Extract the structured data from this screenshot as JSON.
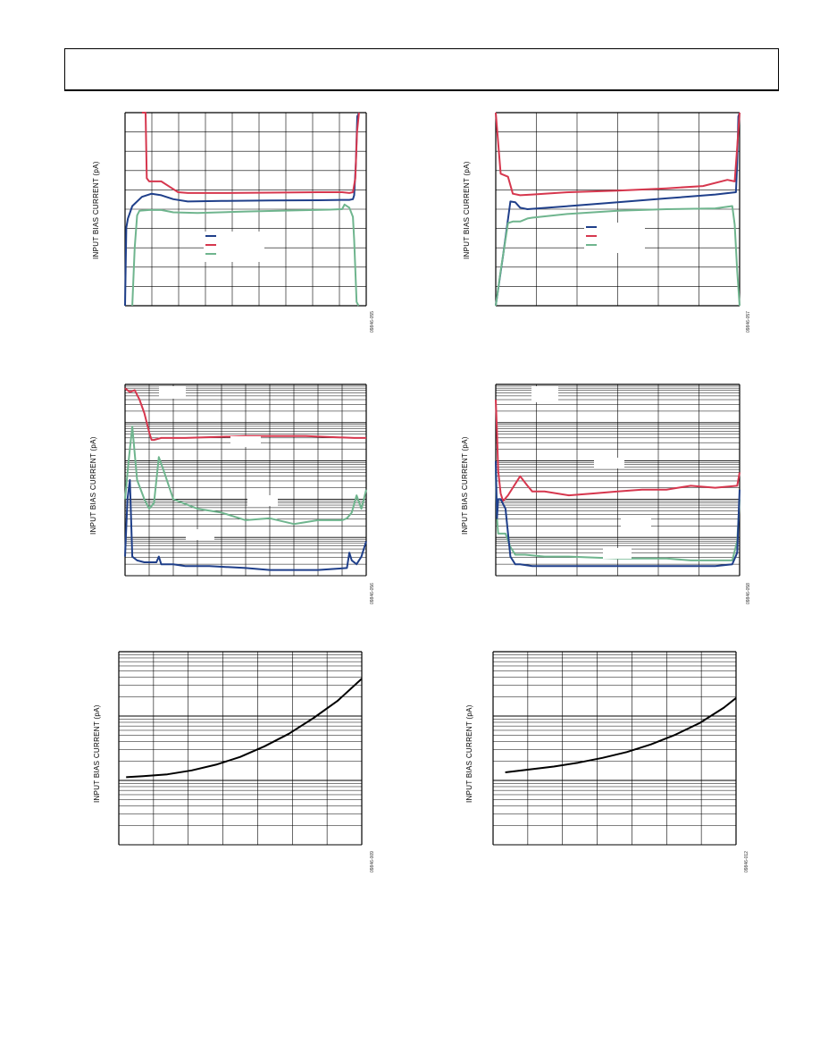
{
  "charts": [
    {
      "ylabel": "INPUT BIAS CURRENT (pA)",
      "fignum": "09846-055"
    },
    {
      "ylabel": "INPUT BIAS CURRENT (pA)",
      "fignum": "09846-057"
    },
    {
      "ylabel": "INPUT BIAS CURRENT (pA)",
      "fignum": "09846-056"
    },
    {
      "ylabel": "INPUT BIAS CURRENT (pA)",
      "fignum": "09846-058"
    },
    {
      "ylabel": "INPUT BIAS CURRENT (pA)",
      "fignum": "09846-009"
    },
    {
      "ylabel": "INPUT BIAS CURRENT (pA)",
      "fignum": "09846-012"
    }
  ],
  "colors": {
    "blue": "#1f3f8a",
    "red": "#d6374e",
    "green": "#6fb58e",
    "grid": "#000000",
    "curve": "#000000"
  },
  "chart_data": [
    {
      "type": "line",
      "grid": "linear",
      "series": [
        {
          "color": "blue",
          "x": [
            0,
            0.005,
            0.012,
            0.03,
            0.07,
            0.11,
            0.15,
            0.2,
            0.26,
            0.4,
            0.6,
            0.8,
            0.9,
            0.93,
            0.945,
            0.95,
            0.957,
            0.963,
            0.97
          ],
          "y": [
            -7,
            -1.2,
            -0.6,
            0.2,
            0.8,
            1.0,
            0.9,
            0.65,
            0.5,
            0.53,
            0.56,
            0.58,
            0.6,
            0.6,
            0.65,
            0.9,
            3,
            6,
            8
          ]
        },
        {
          "color": "red",
          "x": [
            0.07,
            0.085,
            0.09,
            0.1,
            0.15,
            0.19,
            0.22,
            0.26,
            0.4,
            0.6,
            0.8,
            0.9,
            0.93,
            0.945,
            0.955,
            0.962,
            0.97
          ],
          "y": [
            8,
            7,
            2.0,
            1.8,
            1.8,
            1.4,
            1.1,
            1.05,
            1.05,
            1.07,
            1.1,
            1.1,
            1.05,
            1.1,
            2,
            5,
            8
          ]
        },
        {
          "color": "green",
          "x": [
            0.03,
            0.04,
            0.05,
            0.06,
            0.1,
            0.15,
            0.2,
            0.3,
            0.5,
            0.7,
            0.85,
            0.9,
            0.91,
            0.93,
            0.945,
            0.95,
            0.96,
            0.968
          ],
          "y": [
            -8,
            -2.5,
            -0.4,
            -0.1,
            -0.05,
            -0.05,
            -0.2,
            -0.25,
            -0.15,
            -0.08,
            -0.03,
            0.0,
            0.3,
            0.1,
            -0.5,
            -2,
            -6,
            -8
          ]
        }
      ]
    },
    {
      "type": "line",
      "grid": "linear",
      "series": [
        {
          "color": "blue",
          "x": [
            0,
            0.03,
            0.06,
            0.08,
            0.1,
            0.13,
            0.3,
            0.5,
            0.7,
            0.9,
            0.985,
            0.99,
            0.995,
            1
          ],
          "y": [
            -7,
            -3,
            0.5,
            0.45,
            0.1,
            0.0,
            0.2,
            0.45,
            0.7,
            0.95,
            1.1,
            3,
            6,
            8
          ]
        },
        {
          "color": "red",
          "x": [
            0,
            0.02,
            0.05,
            0.07,
            0.1,
            0.15,
            0.3,
            0.5,
            0.7,
            0.85,
            0.95,
            0.98,
            0.99,
            1
          ],
          "y": [
            8,
            2.3,
            2.1,
            1.0,
            0.9,
            0.95,
            1.1,
            1.2,
            1.35,
            1.5,
            1.9,
            1.8,
            4,
            8
          ]
        },
        {
          "color": "green",
          "x": [
            0,
            0.02,
            0.05,
            0.07,
            0.1,
            0.13,
            0.15,
            0.3,
            0.5,
            0.7,
            0.9,
            0.97,
            0.98,
            0.99,
            1
          ],
          "y": [
            -8,
            -4,
            -0.9,
            -0.8,
            -0.8,
            -0.6,
            -0.55,
            -0.3,
            -0.1,
            0.0,
            0.05,
            0.2,
            -1,
            -4,
            -8
          ]
        }
      ]
    },
    {
      "type": "line",
      "grid": "log",
      "series": [
        {
          "color": "red",
          "x": [
            0,
            0.02,
            0.04,
            0.06,
            0.08,
            0.1,
            0.11,
            0.12,
            0.15,
            0.25,
            0.5,
            0.75,
            0.95,
            1
          ],
          "y": [
            0.98,
            0.96,
            0.97,
            0.92,
            0.85,
            0.75,
            0.71,
            0.71,
            0.72,
            0.72,
            0.73,
            0.73,
            0.72,
            0.72
          ]
        },
        {
          "color": "green",
          "x": [
            0,
            0.015,
            0.03,
            0.05,
            0.08,
            0.1,
            0.12,
            0.14,
            0.16,
            0.2,
            0.3,
            0.4,
            0.5,
            0.6,
            0.7,
            0.8,
            0.9,
            0.92,
            0.94,
            0.96,
            0.98,
            1
          ],
          "y": [
            0.4,
            0.6,
            0.78,
            0.5,
            0.4,
            0.35,
            0.38,
            0.62,
            0.55,
            0.4,
            0.35,
            0.33,
            0.29,
            0.3,
            0.27,
            0.29,
            0.29,
            0.3,
            0.33,
            0.42,
            0.35,
            0.45
          ]
        },
        {
          "color": "blue",
          "x": [
            0,
            0.01,
            0.02,
            0.03,
            0.05,
            0.08,
            0.13,
            0.14,
            0.15,
            0.2,
            0.25,
            0.35,
            0.5,
            0.6,
            0.7,
            0.8,
            0.92,
            0.93,
            0.94,
            0.96,
            0.98,
            1
          ],
          "y": [
            0.1,
            0.4,
            0.5,
            0.1,
            0.08,
            0.07,
            0.07,
            0.1,
            0.06,
            0.06,
            0.05,
            0.05,
            0.04,
            0.03,
            0.03,
            0.03,
            0.04,
            0.12,
            0.08,
            0.06,
            0.1,
            0.18
          ]
        }
      ]
    },
    {
      "type": "line",
      "grid": "log",
      "series": [
        {
          "color": "red",
          "x": [
            0,
            0.005,
            0.01,
            0.02,
            0.03,
            0.05,
            0.07,
            0.1,
            0.13,
            0.15,
            0.2,
            0.3,
            0.4,
            0.5,
            0.6,
            0.7,
            0.8,
            0.9,
            0.99,
            1
          ],
          "y": [
            0.92,
            0.75,
            0.55,
            0.43,
            0.39,
            0.42,
            0.46,
            0.52,
            0.47,
            0.44,
            0.44,
            0.42,
            0.43,
            0.44,
            0.45,
            0.45,
            0.47,
            0.46,
            0.47,
            0.54
          ]
        },
        {
          "color": "green",
          "x": [
            0,
            0.005,
            0.01,
            0.02,
            0.04,
            0.06,
            0.08,
            0.12,
            0.2,
            0.3,
            0.5,
            0.6,
            0.7,
            0.8,
            0.9,
            0.97,
            0.99,
            1
          ],
          "y": [
            0.55,
            0.3,
            0.22,
            0.22,
            0.22,
            0.15,
            0.11,
            0.11,
            0.1,
            0.1,
            0.09,
            0.09,
            0.09,
            0.08,
            0.08,
            0.08,
            0.18,
            0.4
          ]
        },
        {
          "color": "blue",
          "x": [
            0,
            0.005,
            0.01,
            0.02,
            0.04,
            0.06,
            0.08,
            0.1,
            0.15,
            0.2,
            0.3,
            0.5,
            0.7,
            0.9,
            0.97,
            0.99,
            1
          ],
          "y": [
            0.6,
            0.3,
            0.4,
            0.4,
            0.35,
            0.1,
            0.06,
            0.06,
            0.05,
            0.05,
            0.05,
            0.05,
            0.05,
            0.05,
            0.06,
            0.12,
            0.45
          ]
        }
      ]
    },
    {
      "type": "line",
      "grid": "semilog",
      "series": [
        {
          "color": "curve",
          "x": [
            0.03,
            0.1,
            0.2,
            0.3,
            0.4,
            0.5,
            0.6,
            0.7,
            0.8,
            0.9,
            1
          ],
          "y": [
            0.35,
            0.355,
            0.365,
            0.385,
            0.415,
            0.455,
            0.51,
            0.575,
            0.655,
            0.745,
            0.86
          ]
        }
      ]
    },
    {
      "type": "line",
      "grid": "semilog",
      "series": [
        {
          "color": "curve",
          "x": [
            0.05,
            0.15,
            0.25,
            0.35,
            0.45,
            0.55,
            0.65,
            0.75,
            0.85,
            0.95,
            1
          ],
          "y": [
            0.375,
            0.39,
            0.405,
            0.425,
            0.45,
            0.48,
            0.52,
            0.57,
            0.63,
            0.71,
            0.76
          ]
        }
      ]
    }
  ]
}
